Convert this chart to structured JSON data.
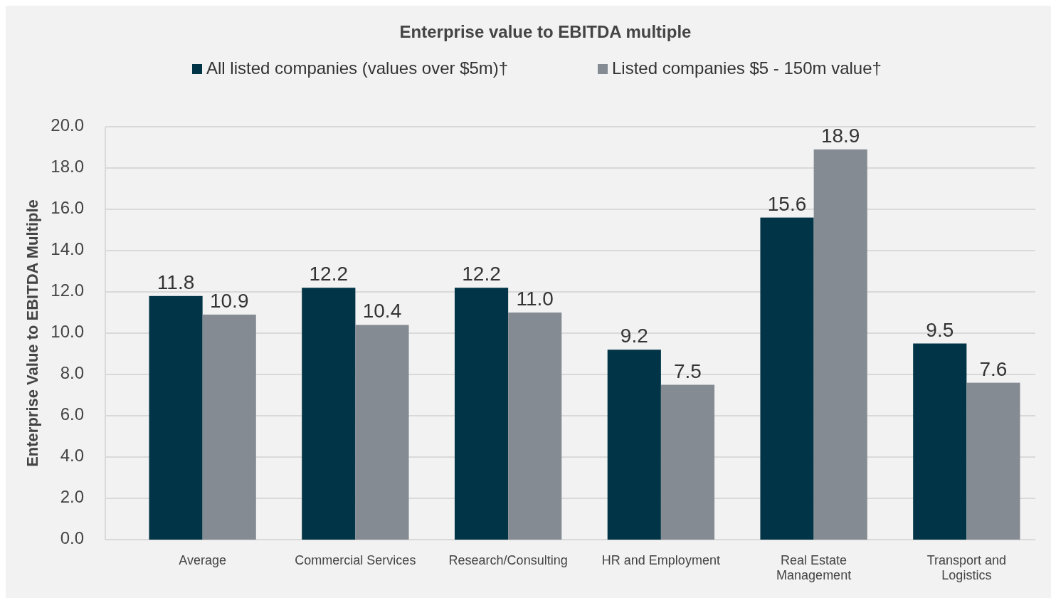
{
  "chart_data": {
    "type": "bar",
    "title": "Enterprise value to EBITDA multiple",
    "ylabel": "Enterprise Value to EBITDA Multiple",
    "categories": [
      "Average",
      "Commercial Services",
      "Research/Consulting",
      "HR and Employment",
      "Real Estate Management",
      "Transport and Logistics"
    ],
    "series": [
      {
        "name": "All listed companies (values over $5m)†",
        "color": "#003446",
        "values": [
          11.8,
          12.2,
          12.2,
          9.2,
          15.6,
          9.5
        ],
        "value_labels": [
          "11.8",
          "12.2",
          "12.2",
          "9.2",
          "15.6",
          "9.5"
        ]
      },
      {
        "name": "Listed companies $5 - 150m value†",
        "color": "#848b92",
        "values": [
          10.9,
          10.4,
          11.0,
          7.5,
          18.9,
          7.6
        ],
        "value_labels": [
          "10.9",
          "10.4",
          "11.0",
          "7.5",
          "18.9",
          "7.6"
        ]
      }
    ],
    "ylim": [
      0,
      20
    ],
    "yticks": [
      {
        "value": 0,
        "label": "0.0"
      },
      {
        "value": 2,
        "label": "2.0"
      },
      {
        "value": 4,
        "label": "4.0"
      },
      {
        "value": 6,
        "label": "6.0"
      },
      {
        "value": 8,
        "label": "8.0"
      },
      {
        "value": 10,
        "label": "10.0"
      },
      {
        "value": 12,
        "label": "12.0"
      },
      {
        "value": 14,
        "label": "14.0"
      },
      {
        "value": 16,
        "label": "16.0"
      },
      {
        "value": 18,
        "label": "18.0"
      },
      {
        "value": 20,
        "label": "20.0"
      }
    ],
    "grid": true,
    "legend": "top"
  }
}
